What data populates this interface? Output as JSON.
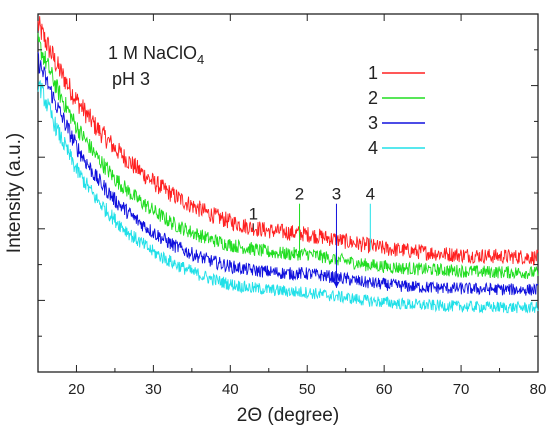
{
  "chart_data": {
    "type": "line",
    "xlabel": "2Θ (degree)",
    "ylabel": "Intensity (a.u.)",
    "xlim": [
      15,
      80
    ],
    "ylim": [
      0,
      10
    ],
    "x_ticks": [
      20,
      30,
      40,
      50,
      60,
      70,
      80
    ],
    "x_tick_labels": [
      "20",
      "30",
      "40",
      "50",
      "60",
      "70",
      "80"
    ],
    "y_tick_labels_shown": false,
    "grid": false,
    "legend_position": "top-right",
    "annotation_lines": [
      "1 M NaClO",
      "pH 3"
    ],
    "annotation_subscript": "4",
    "series": [
      {
        "name": "1",
        "color": "#ff2020",
        "x": [
          15,
          17.5,
          20,
          22.5,
          25,
          27.5,
          30,
          32.5,
          35,
          37.5,
          40,
          42.5,
          45,
          47.5,
          50,
          52.5,
          55,
          57.5,
          60,
          62.5,
          65,
          67.5,
          70,
          72.5,
          75,
          77.5,
          80
        ],
        "values": [
          9.7,
          8.55,
          7.6,
          6.85,
          6.25,
          5.75,
          5.3,
          4.95,
          4.65,
          4.4,
          4.2,
          4.05,
          3.95,
          3.9,
          3.85,
          3.75,
          3.65,
          3.55,
          3.45,
          3.4,
          3.35,
          3.3,
          3.27,
          3.25,
          3.23,
          3.22,
          3.2
        ],
        "noise": 0.25
      },
      {
        "name": "2",
        "color": "#20dd20",
        "x": [
          15,
          17.5,
          20,
          22.5,
          25,
          27.5,
          30,
          32.5,
          35,
          37.5,
          40,
          42.5,
          45,
          47.5,
          50,
          52.5,
          55,
          57.5,
          60,
          62.5,
          65,
          67.5,
          70,
          72.5,
          75,
          77.5,
          80
        ],
        "values": [
          9.2,
          7.9,
          6.85,
          6.05,
          5.4,
          4.9,
          4.5,
          4.15,
          3.9,
          3.7,
          3.55,
          3.45,
          3.35,
          3.3,
          3.3,
          3.2,
          3.1,
          3.0,
          2.95,
          2.9,
          2.87,
          2.85,
          2.82,
          2.8,
          2.79,
          2.78,
          2.77
        ],
        "noise": 0.22
      },
      {
        "name": "3",
        "color": "#1010dd",
        "x": [
          15,
          17.5,
          20,
          22.5,
          25,
          27.5,
          30,
          32.5,
          35,
          37.5,
          40,
          42.5,
          45,
          47.5,
          50,
          52.5,
          55,
          57.5,
          60,
          62.5,
          65,
          67.5,
          70,
          72.5,
          75,
          77.5,
          80
        ],
        "values": [
          8.7,
          7.4,
          6.3,
          5.45,
          4.8,
          4.3,
          3.9,
          3.55,
          3.3,
          3.1,
          2.95,
          2.85,
          2.8,
          2.75,
          2.75,
          2.68,
          2.6,
          2.5,
          2.45,
          2.4,
          2.37,
          2.35,
          2.33,
          2.32,
          2.31,
          2.3,
          2.3
        ],
        "noise": 0.22
      },
      {
        "name": "4",
        "color": "#20e0e8",
        "x": [
          15,
          17.5,
          20,
          22.5,
          25,
          27.5,
          30,
          32.5,
          35,
          37.5,
          40,
          42.5,
          45,
          47.5,
          50,
          52.5,
          55,
          57.5,
          60,
          62.5,
          65,
          67.5,
          70,
          72.5,
          75,
          77.5,
          80
        ],
        "values": [
          8.1,
          6.75,
          5.65,
          4.85,
          4.25,
          3.75,
          3.35,
          3.05,
          2.8,
          2.6,
          2.45,
          2.35,
          2.3,
          2.25,
          2.22,
          2.15,
          2.08,
          2.0,
          1.95,
          1.9,
          1.87,
          1.85,
          1.83,
          1.82,
          1.81,
          1.8,
          1.8
        ],
        "noise": 0.22
      }
    ],
    "markers": [
      {
        "label": "1",
        "x": 43,
        "y_top": 4.15,
        "y_bottom": 3.95,
        "color": "#333333"
      },
      {
        "label": "2",
        "x": 49,
        "y_top": 4.7,
        "y_bottom": 3.35,
        "color": "#20dd20"
      },
      {
        "label": "3",
        "x": 53.8,
        "y_top": 4.7,
        "y_bottom": 2.35,
        "color": "#1010dd"
      },
      {
        "label": "4",
        "x": 58.2,
        "y_top": 4.7,
        "y_bottom": 3.4,
        "color": "#20e0e8"
      }
    ]
  }
}
